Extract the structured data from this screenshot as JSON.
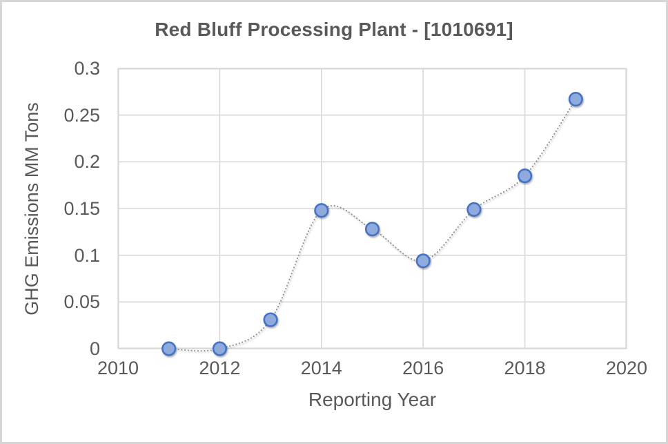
{
  "chart_data": {
    "type": "scatter",
    "title": "Red Bluff Processing Plant - [1010691]",
    "xlabel": "Reporting Year",
    "ylabel": "GHG Emissions MM Tons",
    "x": [
      2011,
      2012,
      2013,
      2014,
      2015,
      2016,
      2017,
      2018,
      2019
    ],
    "y": [
      0.0,
      0.0,
      0.031,
      0.148,
      0.128,
      0.094,
      0.149,
      0.185,
      0.267
    ],
    "xlim": [
      2010,
      2020
    ],
    "ylim": [
      0,
      0.3
    ],
    "x_ticks": [
      "2010",
      "2012",
      "2014",
      "2016",
      "2018",
      "2020"
    ],
    "y_ticks": [
      0,
      0.05,
      0.1,
      0.15,
      0.2,
      0.25,
      0.3
    ],
    "y_tick_labels": [
      "0",
      "0.05",
      "0.1",
      "0.15",
      "0.2",
      "0.25",
      "0.3"
    ],
    "grid": true,
    "legend": "none",
    "line_style": "dotted-smooth",
    "colors": {
      "marker_fill": "#8FAADC",
      "marker_border": "#4472C4",
      "dotted_line": "#8C8C8C",
      "gridline": "#D9D9D9",
      "plot_border": "#D9D9D9",
      "text": "#595959",
      "frame_border": "#D6D6D6"
    }
  }
}
